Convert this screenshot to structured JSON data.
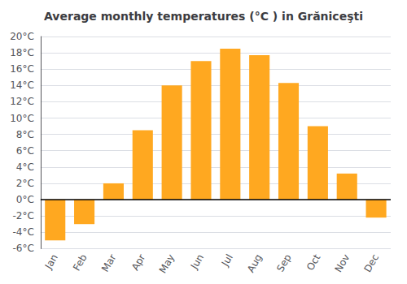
{
  "chart_data": {
    "type": "bar",
    "title": "Average monthly temperatures (°C ) in Grăniceşti",
    "categories": [
      "Jan",
      "Feb",
      "Mar",
      "Apr",
      "May",
      "Jun",
      "Jul",
      "Aug",
      "Sep",
      "Oct",
      "Nov",
      "Dec"
    ],
    "values": [
      -5.0,
      -3.0,
      2.0,
      8.5,
      14.0,
      17.0,
      18.5,
      17.7,
      14.3,
      9.0,
      3.2,
      -2.2
    ],
    "color": "#FFA820",
    "ylim": [
      -6,
      20
    ],
    "yticks": [
      {
        "value": -6,
        "label": "-6°C"
      },
      {
        "value": -4,
        "label": "-4°C"
      },
      {
        "value": -2,
        "label": "-2°C"
      },
      {
        "value": 0,
        "label": "0°C"
      },
      {
        "value": 2,
        "label": "2°C"
      },
      {
        "value": 4,
        "label": "4°C"
      },
      {
        "value": 6,
        "label": "6°C"
      },
      {
        "value": 8,
        "label": "8°C"
      },
      {
        "value": 10,
        "label": "10°C"
      },
      {
        "value": 12,
        "label": "12°C"
      },
      {
        "value": 14,
        "label": "14°C"
      },
      {
        "value": 16,
        "label": "16°C"
      },
      {
        "value": 18,
        "label": "18°C"
      },
      {
        "value": 20,
        "label": "20°C"
      }
    ],
    "grid": true
  }
}
